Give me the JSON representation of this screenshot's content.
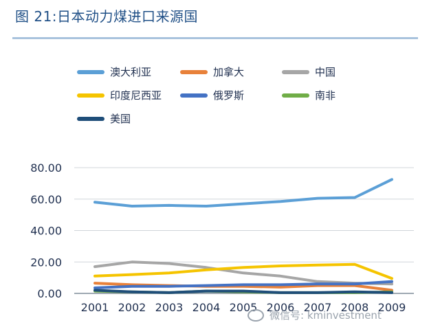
{
  "header": {
    "title": "图 21:日本动力煤进口来源国"
  },
  "watermark": {
    "text": "微信号: kminvestment"
  },
  "colors": {
    "australia": "#5b9fd6",
    "canada": "#e8813a",
    "china": "#a6a6a6",
    "indonesia": "#f5c400",
    "russia": "#4472c4",
    "south_africa": "#70ad47",
    "usa": "#1f4e79"
  },
  "chart_data": {
    "type": "line",
    "title": "图 21:日本动力煤进口来源国",
    "x": [
      "2001",
      "2002",
      "2003",
      "2004",
      "2005",
      "2006",
      "2007",
      "2008",
      "2009"
    ],
    "xlabel": "",
    "ylabel": "",
    "ylim": [
      0,
      80
    ],
    "yticks": [
      "0.00",
      "20.00",
      "40.00",
      "60.00",
      "80.00"
    ],
    "grid": true,
    "legend_placement": "top",
    "series": [
      {
        "name": "澳大利亚",
        "color": "#5b9fd6",
        "values": [
          58,
          55.5,
          56,
          55.5,
          57,
          58.5,
          60.5,
          61,
          72.5
        ]
      },
      {
        "name": "加拿大",
        "color": "#e8813a",
        "values": [
          6.5,
          5.5,
          5,
          4.5,
          4.5,
          4,
          5,
          5,
          2
        ]
      },
      {
        "name": "中国",
        "color": "#a6a6a6",
        "values": [
          17,
          20,
          19,
          16.5,
          13,
          11,
          7.5,
          6.5,
          6
        ]
      },
      {
        "name": "印度尼西亚",
        "color": "#f5c400",
        "values": [
          11,
          12,
          13,
          15,
          16.5,
          17.5,
          18,
          18.5,
          9.5
        ]
      },
      {
        "name": "俄罗斯",
        "color": "#4472c4",
        "values": [
          3.5,
          4.5,
          4.5,
          5,
          5.5,
          5.5,
          6,
          6,
          7.5
        ]
      },
      {
        "name": "南非",
        "color": "#70ad47",
        "values": [
          1.5,
          1,
          0.5,
          1.5,
          1,
          0.5,
          0.5,
          0.5,
          1
        ]
      },
      {
        "name": "美国",
        "color": "#1f4e79",
        "values": [
          2,
          1,
          0.5,
          1.5,
          1.5,
          0.5,
          0.5,
          1,
          0.5
        ]
      }
    ]
  }
}
